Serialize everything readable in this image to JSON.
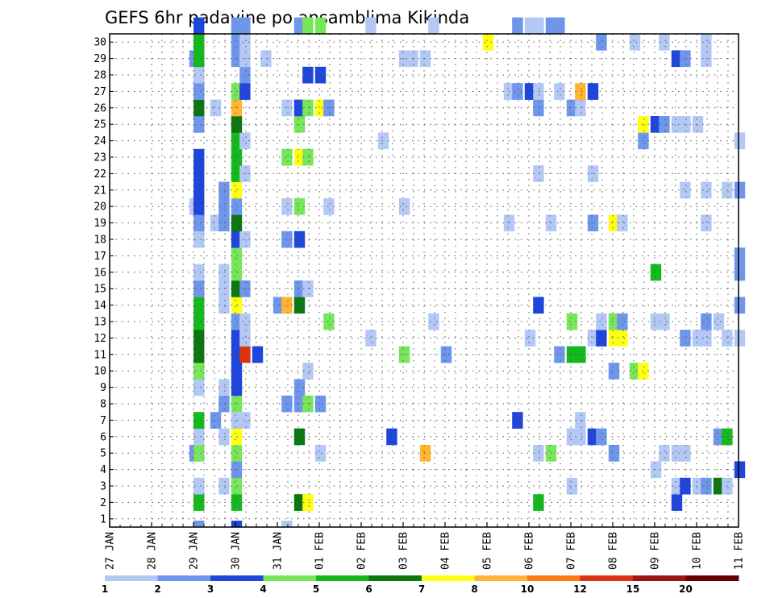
{
  "chart_data": {
    "type": "heatmap",
    "title": "GEFS 6hr padavine po ansamblima Kikinda",
    "xlabel": "",
    "ylabel": "",
    "x_tick_labels": [
      "27 JAN",
      "28 JAN",
      "29 JAN",
      "30 JAN",
      "31 JAN",
      "01 FEB",
      "02 FEB",
      "03 FEB",
      "04 FEB",
      "05 FEB",
      "06 FEB",
      "07 FEB",
      "08 FEB",
      "09 FEB",
      "10 FEB",
      "11 FEB"
    ],
    "y_tick_labels": [
      "1",
      "2",
      "3",
      "4",
      "5",
      "6",
      "7",
      "8",
      "9",
      "10",
      "11",
      "12",
      "13",
      "14",
      "15",
      "16",
      "17",
      "18",
      "19",
      "20",
      "21",
      "22",
      "23",
      "24",
      "25",
      "26",
      "27",
      "28",
      "29",
      "30"
    ],
    "x_unit": "days since 27 JAN 00Z",
    "xlim": [
      0,
      15
    ],
    "ylim": [
      0,
      30
    ],
    "grid": true,
    "legend": {
      "position": "bottom",
      "boundaries": [
        1,
        2,
        3,
        4,
        5,
        6,
        7,
        8,
        10,
        12,
        15,
        20
      ],
      "boundary_labels": [
        "1",
        "2",
        "3",
        "4",
        "5",
        "6",
        "7",
        "8",
        "10",
        "12",
        "15",
        "20"
      ],
      "colors": [
        "#b4c8f5",
        "#6e96eb",
        "#1e46dc",
        "#78e65a",
        "#14b91e",
        "#0a780f",
        "#ffff14",
        "#ffb432",
        "#ff7814",
        "#dc320f",
        "#a0140f",
        "#640000"
      ]
    },
    "cells": [
      {
        "m": 1,
        "t": 2.0,
        "v": 5.5
      },
      {
        "m": 1,
        "t": 2.9,
        "v": 5.5
      },
      {
        "m": 1,
        "t": 4.4,
        "v": 6.5
      },
      {
        "m": 1,
        "t": 4.6,
        "v": 7.5
      },
      {
        "m": 1,
        "t": 10.1,
        "v": 5.5
      },
      {
        "m": 1,
        "t": 13.4,
        "v": 3.5
      },
      {
        "m": 2,
        "t": 2.0,
        "v": 1.5
      },
      {
        "m": 2,
        "t": 2.6,
        "v": 1.5
      },
      {
        "m": 2,
        "t": 2.9,
        "v": 4.5
      },
      {
        "m": 2,
        "t": 10.9,
        "v": 1.5
      },
      {
        "m": 2,
        "t": 13.4,
        "v": 1.5
      },
      {
        "m": 2,
        "t": 13.6,
        "v": 3.5
      },
      {
        "m": 2,
        "t": 13.9,
        "v": 1.5
      },
      {
        "m": 2,
        "t": 14.1,
        "v": 2.5
      },
      {
        "m": 2,
        "t": 14.4,
        "v": 6.5
      },
      {
        "m": 2,
        "t": 14.6,
        "v": 1.5
      },
      {
        "m": 3,
        "t": 2.9,
        "v": 2.5
      },
      {
        "m": 3,
        "t": 12.9,
        "v": 1.5
      },
      {
        "m": 3,
        "t": 14.9,
        "v": 3.5
      },
      {
        "m": 4,
        "t": 1.9,
        "v": 2.5
      },
      {
        "m": 4,
        "t": 2.0,
        "v": 4.5
      },
      {
        "m": 4,
        "t": 2.9,
        "v": 4.5
      },
      {
        "m": 4,
        "t": 4.9,
        "v": 1.5
      },
      {
        "m": 4,
        "t": 7.4,
        "v": 9.0
      },
      {
        "m": 4,
        "t": 10.1,
        "v": 1.5
      },
      {
        "m": 4,
        "t": 10.4,
        "v": 4.5
      },
      {
        "m": 4,
        "t": 11.9,
        "v": 2.5
      },
      {
        "m": 4,
        "t": 13.1,
        "v": 1.5
      },
      {
        "m": 4,
        "t": 13.4,
        "v": 1.5
      },
      {
        "m": 4,
        "t": 13.6,
        "v": 1.5
      },
      {
        "m": 5,
        "t": 2.0,
        "v": 1.5
      },
      {
        "m": 5,
        "t": 2.6,
        "v": 1.5
      },
      {
        "m": 5,
        "t": 2.9,
        "v": 7.5
      },
      {
        "m": 5,
        "t": 4.4,
        "v": 6.5
      },
      {
        "m": 5,
        "t": 6.6,
        "v": 3.5
      },
      {
        "m": 5,
        "t": 10.9,
        "v": 1.5
      },
      {
        "m": 5,
        "t": 11.1,
        "v": 1.5
      },
      {
        "m": 5,
        "t": 11.4,
        "v": 3.5
      },
      {
        "m": 5,
        "t": 11.6,
        "v": 2.5
      },
      {
        "m": 5,
        "t": 14.4,
        "v": 2.5
      },
      {
        "m": 5,
        "t": 14.6,
        "v": 5.5
      },
      {
        "m": 6,
        "t": 2.0,
        "v": 5.5
      },
      {
        "m": 6,
        "t": 2.4,
        "v": 2.5
      },
      {
        "m": 6,
        "t": 2.9,
        "v": 1.5
      },
      {
        "m": 6,
        "t": 3.1,
        "v": 1.5
      },
      {
        "m": 6,
        "t": 9.6,
        "v": 3.5
      },
      {
        "m": 6,
        "t": 11.1,
        "v": 1.5
      },
      {
        "m": 7,
        "t": 2.6,
        "v": 2.5
      },
      {
        "m": 7,
        "t": 2.9,
        "v": 4.5
      },
      {
        "m": 7,
        "t": 4.1,
        "v": 2.5
      },
      {
        "m": 7,
        "t": 4.4,
        "v": 2.5
      },
      {
        "m": 7,
        "t": 4.6,
        "v": 4.5
      },
      {
        "m": 7,
        "t": 4.9,
        "v": 2.5
      },
      {
        "m": 8,
        "t": 2.0,
        "v": 1.5
      },
      {
        "m": 8,
        "t": 2.6,
        "v": 1.5
      },
      {
        "m": 8,
        "t": 2.9,
        "v": 3.5
      },
      {
        "m": 8,
        "t": 4.4,
        "v": 2.5
      },
      {
        "m": 9,
        "t": 2.0,
        "v": 4.5
      },
      {
        "m": 9,
        "t": 2.9,
        "v": 3.5
      },
      {
        "m": 9,
        "t": 4.6,
        "v": 1.5
      },
      {
        "m": 9,
        "t": 11.9,
        "v": 2.5
      },
      {
        "m": 9,
        "t": 12.4,
        "v": 4.5
      },
      {
        "m": 9,
        "t": 12.6,
        "v": 7.5
      },
      {
        "m": 10,
        "t": 2.0,
        "v": 6.5
      },
      {
        "m": 10,
        "t": 2.9,
        "v": 3.5
      },
      {
        "m": 10,
        "t": 3.1,
        "v": 13.0
      },
      {
        "m": 10,
        "t": 3.4,
        "v": 3.5
      },
      {
        "m": 10,
        "t": 6.9,
        "v": 4.5
      },
      {
        "m": 10,
        "t": 7.9,
        "v": 2.5
      },
      {
        "m": 10,
        "t": 10.6,
        "v": 2.5
      },
      {
        "m": 10,
        "t": 10.9,
        "v": 5.5
      },
      {
        "m": 10,
        "t": 11.1,
        "v": 5.5
      },
      {
        "m": 11,
        "t": 2.0,
        "v": 6.5
      },
      {
        "m": 11,
        "t": 2.9,
        "v": 3.5
      },
      {
        "m": 11,
        "t": 3.1,
        "v": 1.5
      },
      {
        "m": 11,
        "t": 6.1,
        "v": 1.5
      },
      {
        "m": 11,
        "t": 9.9,
        "v": 1.5
      },
      {
        "m": 11,
        "t": 11.4,
        "v": 1.5
      },
      {
        "m": 11,
        "t": 11.6,
        "v": 3.5
      },
      {
        "m": 11,
        "t": 11.9,
        "v": 7.5
      },
      {
        "m": 11,
        "t": 12.1,
        "v": 7.5
      },
      {
        "m": 11,
        "t": 13.6,
        "v": 2.5
      },
      {
        "m": 11,
        "t": 13.9,
        "v": 1.5
      },
      {
        "m": 11,
        "t": 14.1,
        "v": 1.5
      },
      {
        "m": 11,
        "t": 14.6,
        "v": 1.5
      },
      {
        "m": 11,
        "t": 14.9,
        "v": 1.5
      },
      {
        "m": 12,
        "t": 2.0,
        "v": 5.5
      },
      {
        "m": 12,
        "t": 2.9,
        "v": 2.5
      },
      {
        "m": 12,
        "t": 3.1,
        "v": 1.5
      },
      {
        "m": 12,
        "t": 5.1,
        "v": 4.5
      },
      {
        "m": 12,
        "t": 7.6,
        "v": 1.5
      },
      {
        "m": 12,
        "t": 10.9,
        "v": 4.5
      },
      {
        "m": 12,
        "t": 11.6,
        "v": 1.5
      },
      {
        "m": 12,
        "t": 11.9,
        "v": 4.5
      },
      {
        "m": 12,
        "t": 12.1,
        "v": 2.5
      },
      {
        "m": 12,
        "t": 12.9,
        "v": 1.5
      },
      {
        "m": 12,
        "t": 13.1,
        "v": 1.5
      },
      {
        "m": 12,
        "t": 14.1,
        "v": 2.5
      },
      {
        "m": 12,
        "t": 14.4,
        "v": 1.5
      },
      {
        "m": 13,
        "t": 2.0,
        "v": 5.5
      },
      {
        "m": 13,
        "t": 2.6,
        "v": 1.5
      },
      {
        "m": 13,
        "t": 2.9,
        "v": 7.5
      },
      {
        "m": 13,
        "t": 3.9,
        "v": 2.5
      },
      {
        "m": 13,
        "t": 4.1,
        "v": 9.0
      },
      {
        "m": 13,
        "t": 4.4,
        "v": 6.5
      },
      {
        "m": 13,
        "t": 10.1,
        "v": 3.5
      },
      {
        "m": 13,
        "t": 14.9,
        "v": 2.5
      },
      {
        "m": 14,
        "t": 2.0,
        "v": 2.5
      },
      {
        "m": 14,
        "t": 2.6,
        "v": 1.5
      },
      {
        "m": 14,
        "t": 2.9,
        "v": 6.5
      },
      {
        "m": 14,
        "t": 3.1,
        "v": 2.5
      },
      {
        "m": 14,
        "t": 4.4,
        "v": 2.5
      },
      {
        "m": 14,
        "t": 4.6,
        "v": 1.5
      },
      {
        "m": 15,
        "t": 2.0,
        "v": 1.5
      },
      {
        "m": 15,
        "t": 2.6,
        "v": 1.5
      },
      {
        "m": 15,
        "t": 2.9,
        "v": 4.5
      },
      {
        "m": 15,
        "t": 12.9,
        "v": 5.5
      },
      {
        "m": 15,
        "t": 14.9,
        "v": 2.5
      },
      {
        "m": 16,
        "t": 2.9,
        "v": 4.5
      },
      {
        "m": 16,
        "t": 14.9,
        "v": 2.5
      },
      {
        "m": 17,
        "t": 2.0,
        "v": 1.5
      },
      {
        "m": 17,
        "t": 2.9,
        "v": 3.5
      },
      {
        "m": 17,
        "t": 3.1,
        "v": 1.5
      },
      {
        "m": 17,
        "t": 4.1,
        "v": 2.5
      },
      {
        "m": 17,
        "t": 4.4,
        "v": 3.5
      },
      {
        "m": 18,
        "t": 2.0,
        "v": 2.5
      },
      {
        "m": 18,
        "t": 2.4,
        "v": 1.5
      },
      {
        "m": 18,
        "t": 2.6,
        "v": 2.5
      },
      {
        "m": 18,
        "t": 2.9,
        "v": 6.5
      },
      {
        "m": 18,
        "t": 9.4,
        "v": 1.5
      },
      {
        "m": 18,
        "t": 10.4,
        "v": 1.5
      },
      {
        "m": 18,
        "t": 11.4,
        "v": 2.5
      },
      {
        "m": 18,
        "t": 11.9,
        "v": 7.5
      },
      {
        "m": 18,
        "t": 12.1,
        "v": 1.5
      },
      {
        "m": 18,
        "t": 14.1,
        "v": 1.5
      },
      {
        "m": 19,
        "t": 1.9,
        "v": 1.5
      },
      {
        "m": 19,
        "t": 2.0,
        "v": 3.5
      },
      {
        "m": 19,
        "t": 2.6,
        "v": 2.5
      },
      {
        "m": 19,
        "t": 2.9,
        "v": 2.5
      },
      {
        "m": 19,
        "t": 4.1,
        "v": 1.5
      },
      {
        "m": 19,
        "t": 4.4,
        "v": 4.5
      },
      {
        "m": 19,
        "t": 5.1,
        "v": 1.5
      },
      {
        "m": 19,
        "t": 6.9,
        "v": 1.5
      },
      {
        "m": 20,
        "t": 2.0,
        "v": 3.5
      },
      {
        "m": 20,
        "t": 2.6,
        "v": 2.5
      },
      {
        "m": 20,
        "t": 2.9,
        "v": 7.5
      },
      {
        "m": 20,
        "t": 13.6,
        "v": 1.5
      },
      {
        "m": 20,
        "t": 14.1,
        "v": 1.5
      },
      {
        "m": 20,
        "t": 14.6,
        "v": 1.5
      },
      {
        "m": 20,
        "t": 14.9,
        "v": 2.5
      },
      {
        "m": 21,
        "t": 2.0,
        "v": 3.5
      },
      {
        "m": 21,
        "t": 2.9,
        "v": 5.5
      },
      {
        "m": 21,
        "t": 3.1,
        "v": 1.5
      },
      {
        "m": 21,
        "t": 10.1,
        "v": 1.5
      },
      {
        "m": 21,
        "t": 11.4,
        "v": 1.5
      },
      {
        "m": 22,
        "t": 2.0,
        "v": 3.5
      },
      {
        "m": 22,
        "t": 2.9,
        "v": 5.5
      },
      {
        "m": 22,
        "t": 4.1,
        "v": 4.5
      },
      {
        "m": 22,
        "t": 4.4,
        "v": 7.5
      },
      {
        "m": 22,
        "t": 4.6,
        "v": 4.5
      },
      {
        "m": 23,
        "t": 2.9,
        "v": 5.5
      },
      {
        "m": 23,
        "t": 3.1,
        "v": 1.5
      },
      {
        "m": 23,
        "t": 6.4,
        "v": 1.5
      },
      {
        "m": 23,
        "t": 12.6,
        "v": 2.5
      },
      {
        "m": 23,
        "t": 14.9,
        "v": 1.5
      },
      {
        "m": 24,
        "t": 2.0,
        "v": 2.5
      },
      {
        "m": 24,
        "t": 2.9,
        "v": 6.5
      },
      {
        "m": 24,
        "t": 4.4,
        "v": 4.5
      },
      {
        "m": 24,
        "t": 12.6,
        "v": 7.5
      },
      {
        "m": 24,
        "t": 12.9,
        "v": 3.5
      },
      {
        "m": 24,
        "t": 13.1,
        "v": 2.5
      },
      {
        "m": 24,
        "t": 13.4,
        "v": 1.5
      },
      {
        "m": 24,
        "t": 13.6,
        "v": 1.5
      },
      {
        "m": 24,
        "t": 13.9,
        "v": 1.5
      },
      {
        "m": 25,
        "t": 2.0,
        "v": 6.5
      },
      {
        "m": 25,
        "t": 2.4,
        "v": 1.5
      },
      {
        "m": 25,
        "t": 2.9,
        "v": 8.5
      },
      {
        "m": 25,
        "t": 4.1,
        "v": 1.5
      },
      {
        "m": 25,
        "t": 4.4,
        "v": 3.5
      },
      {
        "m": 25,
        "t": 4.6,
        "v": 4.5
      },
      {
        "m": 25,
        "t": 4.9,
        "v": 7.5
      },
      {
        "m": 25,
        "t": 5.1,
        "v": 2.5
      },
      {
        "m": 25,
        "t": 10.1,
        "v": 2.5
      },
      {
        "m": 25,
        "t": 10.9,
        "v": 2.5
      },
      {
        "m": 25,
        "t": 11.1,
        "v": 1.5
      },
      {
        "m": 26,
        "t": 2.0,
        "v": 2.5
      },
      {
        "m": 26,
        "t": 2.9,
        "v": 4.5
      },
      {
        "m": 26,
        "t": 3.1,
        "v": 3.5
      },
      {
        "m": 26,
        "t": 9.4,
        "v": 1.5
      },
      {
        "m": 26,
        "t": 9.6,
        "v": 2.5
      },
      {
        "m": 26,
        "t": 9.9,
        "v": 3.5
      },
      {
        "m": 26,
        "t": 10.1,
        "v": 1.5
      },
      {
        "m": 26,
        "t": 10.6,
        "v": 1.5
      },
      {
        "m": 26,
        "t": 11.1,
        "v": 9.0
      },
      {
        "m": 26,
        "t": 11.4,
        "v": 3.5
      },
      {
        "m": 27,
        "t": 2.0,
        "v": 1.5
      },
      {
        "m": 27,
        "t": 3.1,
        "v": 2.5
      },
      {
        "m": 27,
        "t": 4.6,
        "v": 3.5
      },
      {
        "m": 27,
        "t": 4.9,
        "v": 3.5
      },
      {
        "m": 28,
        "t": 1.9,
        "v": 2.5
      },
      {
        "m": 28,
        "t": 2.0,
        "v": 5.5
      },
      {
        "m": 28,
        "t": 2.9,
        "v": 2.5
      },
      {
        "m": 28,
        "t": 3.1,
        "v": 1.5
      },
      {
        "m": 28,
        "t": 3.6,
        "v": 1.5
      },
      {
        "m": 28,
        "t": 6.9,
        "v": 1.5
      },
      {
        "m": 28,
        "t": 7.1,
        "v": 1.5
      },
      {
        "m": 28,
        "t": 7.4,
        "v": 1.5
      },
      {
        "m": 28,
        "t": 13.4,
        "v": 3.5
      },
      {
        "m": 28,
        "t": 13.6,
        "v": 2.5
      },
      {
        "m": 28,
        "t": 14.1,
        "v": 1.5
      },
      {
        "m": 29,
        "t": 2.0,
        "v": 5.5
      },
      {
        "m": 29,
        "t": 2.9,
        "v": 2.5
      },
      {
        "m": 29,
        "t": 3.1,
        "v": 1.5
      },
      {
        "m": 29,
        "t": 8.9,
        "v": 7.5
      },
      {
        "m": 29,
        "t": 11.6,
        "v": 2.5
      },
      {
        "m": 29,
        "t": 12.4,
        "v": 1.5
      },
      {
        "m": 29,
        "t": 13.1,
        "v": 1.5
      },
      {
        "m": 29,
        "t": 14.1,
        "v": 1.5
      },
      {
        "m": 30,
        "t": 2.0,
        "v": 3.5
      },
      {
        "m": 30,
        "t": 2.9,
        "v": 2.5
      },
      {
        "m": 30,
        "t": 3.1,
        "v": 2.5
      },
      {
        "m": 30,
        "t": 4.4,
        "v": 2.5
      },
      {
        "m": 30,
        "t": 4.6,
        "v": 4.5
      },
      {
        "m": 30,
        "t": 4.9,
        "v": 4.5
      },
      {
        "m": 30,
        "t": 6.1,
        "v": 1.5
      },
      {
        "m": 30,
        "t": 7.6,
        "v": 1.5
      },
      {
        "m": 30,
        "t": 9.6,
        "v": 2.5
      },
      {
        "m": 30,
        "t": 9.9,
        "v": 1.5
      },
      {
        "m": 30,
        "t": 10.1,
        "v": 1.5
      },
      {
        "m": 30,
        "t": 10.4,
        "v": 2.5
      },
      {
        "m": 30,
        "t": 10.6,
        "v": 2.5
      },
      {
        "m": 0,
        "t": 2.0,
        "v": 2.5
      },
      {
        "m": 0,
        "t": 2.9,
        "v": 3.5
      },
      {
        "m": 0,
        "t": 4.1,
        "v": 1.5
      }
    ]
  }
}
